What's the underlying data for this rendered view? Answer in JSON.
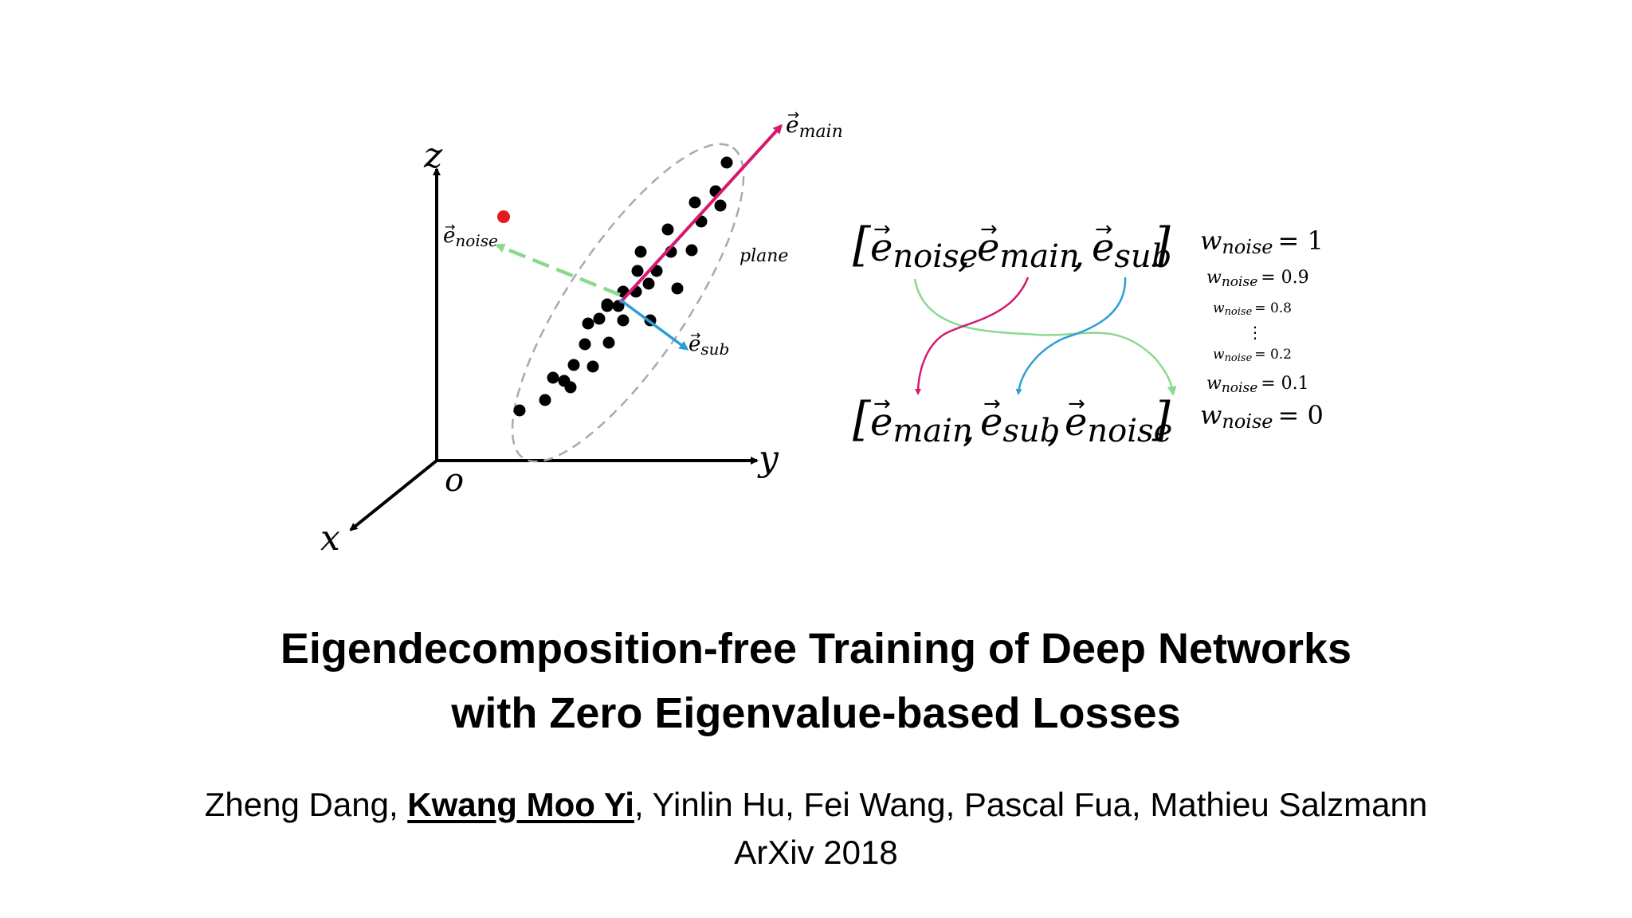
{
  "figure": {
    "axes": {
      "z": "z",
      "y": "y",
      "x": "x",
      "origin": "o"
    },
    "vectors": {
      "main": {
        "base": "e",
        "sub": "main",
        "color": "#d6196f"
      },
      "noise": {
        "base": "e",
        "sub": "noise",
        "color": "#8bd98f"
      },
      "sub": {
        "base": "e",
        "sub": "sub",
        "color": "#2a9fd6"
      }
    },
    "plane_label": "plane",
    "outlier_color": "#e31a1c",
    "point_color": "#000000",
    "ellipse_color": "#a8a8b8"
  },
  "reorder": {
    "top": [
      {
        "base": "e",
        "sub": "noise"
      },
      {
        "base": "e",
        "sub": "main"
      },
      {
        "base": "e",
        "sub": "sub"
      }
    ],
    "bottom": [
      {
        "base": "e",
        "sub": "main"
      },
      {
        "base": "e",
        "sub": "sub"
      },
      {
        "base": "e",
        "sub": "noise"
      }
    ],
    "weights": [
      {
        "base": "w",
        "sub": "noise",
        "value": "= 1"
      },
      {
        "base": "w",
        "sub": "noise",
        "value": "= 0.9"
      },
      {
        "base": "w",
        "sub": "noise",
        "value": "= 0.8"
      },
      {
        "base": "w",
        "sub": "noise",
        "value": "= 0.2"
      },
      {
        "base": "w",
        "sub": "noise",
        "value": "= 0.1"
      },
      {
        "base": "w",
        "sub": "noise",
        "value": "= 0"
      }
    ],
    "ellipsis": "⋮"
  },
  "title": {
    "line1": "Eigendecomposition-free Training of Deep Networks",
    "line2": "with Zero Eigenvalue-based Losses"
  },
  "authors": {
    "before": "Zheng Dang, ",
    "highlight": "Kwang Moo Yi",
    "after": ", Yinlin Hu, Fei Wang, Pascal Fua, Mathieu Salzmann"
  },
  "venue": "ArXiv 2018"
}
